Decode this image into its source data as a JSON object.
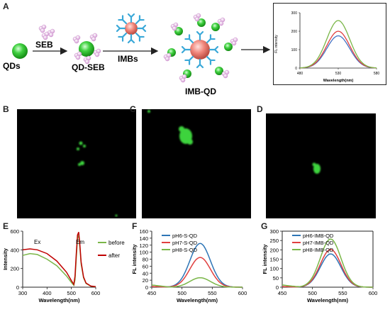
{
  "panel_labels": {
    "a": "A",
    "b": "B",
    "c": "C",
    "d": "D",
    "e": "E",
    "f": "F",
    "g": "G"
  },
  "schematic": {
    "qds": "QDs",
    "seb": "SEB",
    "qd_seb": "QD-SEB",
    "imbs": "IMBs",
    "imb_qd": "IMB-QD",
    "inset": {
      "ylabel": "FL intensity",
      "xlabel": "Wavelength(nm)",
      "yticks": [
        "0",
        "100",
        "200",
        "300"
      ],
      "xticks": [
        "480",
        "530",
        "580"
      ]
    }
  },
  "chart_data": [
    {
      "panel": "A-inset",
      "type": "line",
      "xlabel": "Wavelength(nm)",
      "ylabel": "FL intensity",
      "xlim": [
        480,
        580
      ],
      "ylim": [
        0,
        300
      ],
      "series": [
        {
          "color": "#4472c4",
          "peak_x": 530,
          "peak_y": 175
        },
        {
          "color": "#e04040",
          "peak_x": 530,
          "peak_y": 200
        },
        {
          "color": "#7ab648",
          "peak_x": 530,
          "peak_y": 258
        }
      ]
    },
    {
      "panel": "E",
      "type": "line",
      "xlabel": "Wavelength(nm)",
      "ylabel": "Intensity",
      "xlim": [
        300,
        600
      ],
      "ylim": [
        0,
        600
      ],
      "xticks": [
        "300",
        "400",
        "500",
        "600"
      ],
      "yticks": [
        "0",
        "200",
        "400",
        "600"
      ],
      "annotations": [
        "Ex",
        "Em"
      ],
      "legend": {
        "position": "right",
        "items": [
          {
            "name": "before",
            "color": "#7ab648"
          },
          {
            "name": "after",
            "color": "#c00000"
          }
        ]
      },
      "series": [
        {
          "name": "before",
          "color": "#7ab648",
          "x": [
            300,
            330,
            360,
            400,
            440,
            480,
            500,
            510,
            515,
            520,
            525,
            530,
            535,
            540,
            550,
            560,
            580,
            600
          ],
          "y": [
            340,
            360,
            350,
            300,
            230,
            120,
            50,
            20,
            80,
            300,
            520,
            560,
            420,
            250,
            100,
            40,
            10,
            5
          ]
        },
        {
          "name": "after",
          "color": "#c00000",
          "x": [
            300,
            330,
            360,
            400,
            440,
            480,
            500,
            510,
            515,
            520,
            525,
            530,
            535,
            540,
            550,
            560,
            580,
            600
          ],
          "y": [
            400,
            410,
            400,
            360,
            280,
            160,
            70,
            30,
            120,
            350,
            560,
            590,
            450,
            270,
            110,
            45,
            12,
            5
          ]
        }
      ]
    },
    {
      "panel": "F",
      "type": "line",
      "xlabel": "Wavelength(nm)",
      "ylabel": "FL intensity",
      "xlim": [
        450,
        600
      ],
      "ylim": [
        0,
        160
      ],
      "xticks": [
        "450",
        "500",
        "550",
        "600"
      ],
      "yticks": [
        "0",
        "20",
        "40",
        "60",
        "80",
        "100",
        "120",
        "140",
        "160"
      ],
      "legend": {
        "position": "top-left"
      },
      "series": [
        {
          "name": "pH6-S-QD",
          "color": "#2e75b6",
          "peak_x": 530,
          "peak_y": 125,
          "width": 17
        },
        {
          "name": "pH7-S-QD",
          "color": "#e04040",
          "peak_x": 530,
          "peak_y": 85,
          "width": 17
        },
        {
          "name": "pH8-S-QD",
          "color": "#7ab648",
          "peak_x": 530,
          "peak_y": 27,
          "width": 17
        }
      ]
    },
    {
      "panel": "G",
      "type": "line",
      "xlabel": "Wavelength(nm)",
      "ylabel": "FL intensity",
      "xlim": [
        450,
        600
      ],
      "ylim": [
        0,
        300
      ],
      "xticks": [
        "450",
        "500",
        "550",
        "600"
      ],
      "yticks": [
        "0",
        "50",
        "100",
        "150",
        "200",
        "250",
        "300"
      ],
      "legend": {
        "position": "top-left"
      },
      "series": [
        {
          "name": "pH6-IMB-QD",
          "color": "#2e75b6",
          "peak_x": 530,
          "peak_y": 178,
          "width": 17
        },
        {
          "name": "pH7-IMB-QD",
          "color": "#e04040",
          "peak_x": 530,
          "peak_y": 202,
          "width": 17
        },
        {
          "name": "pH8-IMB-QD",
          "color": "#7ab648",
          "peak_x": 530,
          "peak_y": 258,
          "width": 17
        }
      ]
    }
  ]
}
